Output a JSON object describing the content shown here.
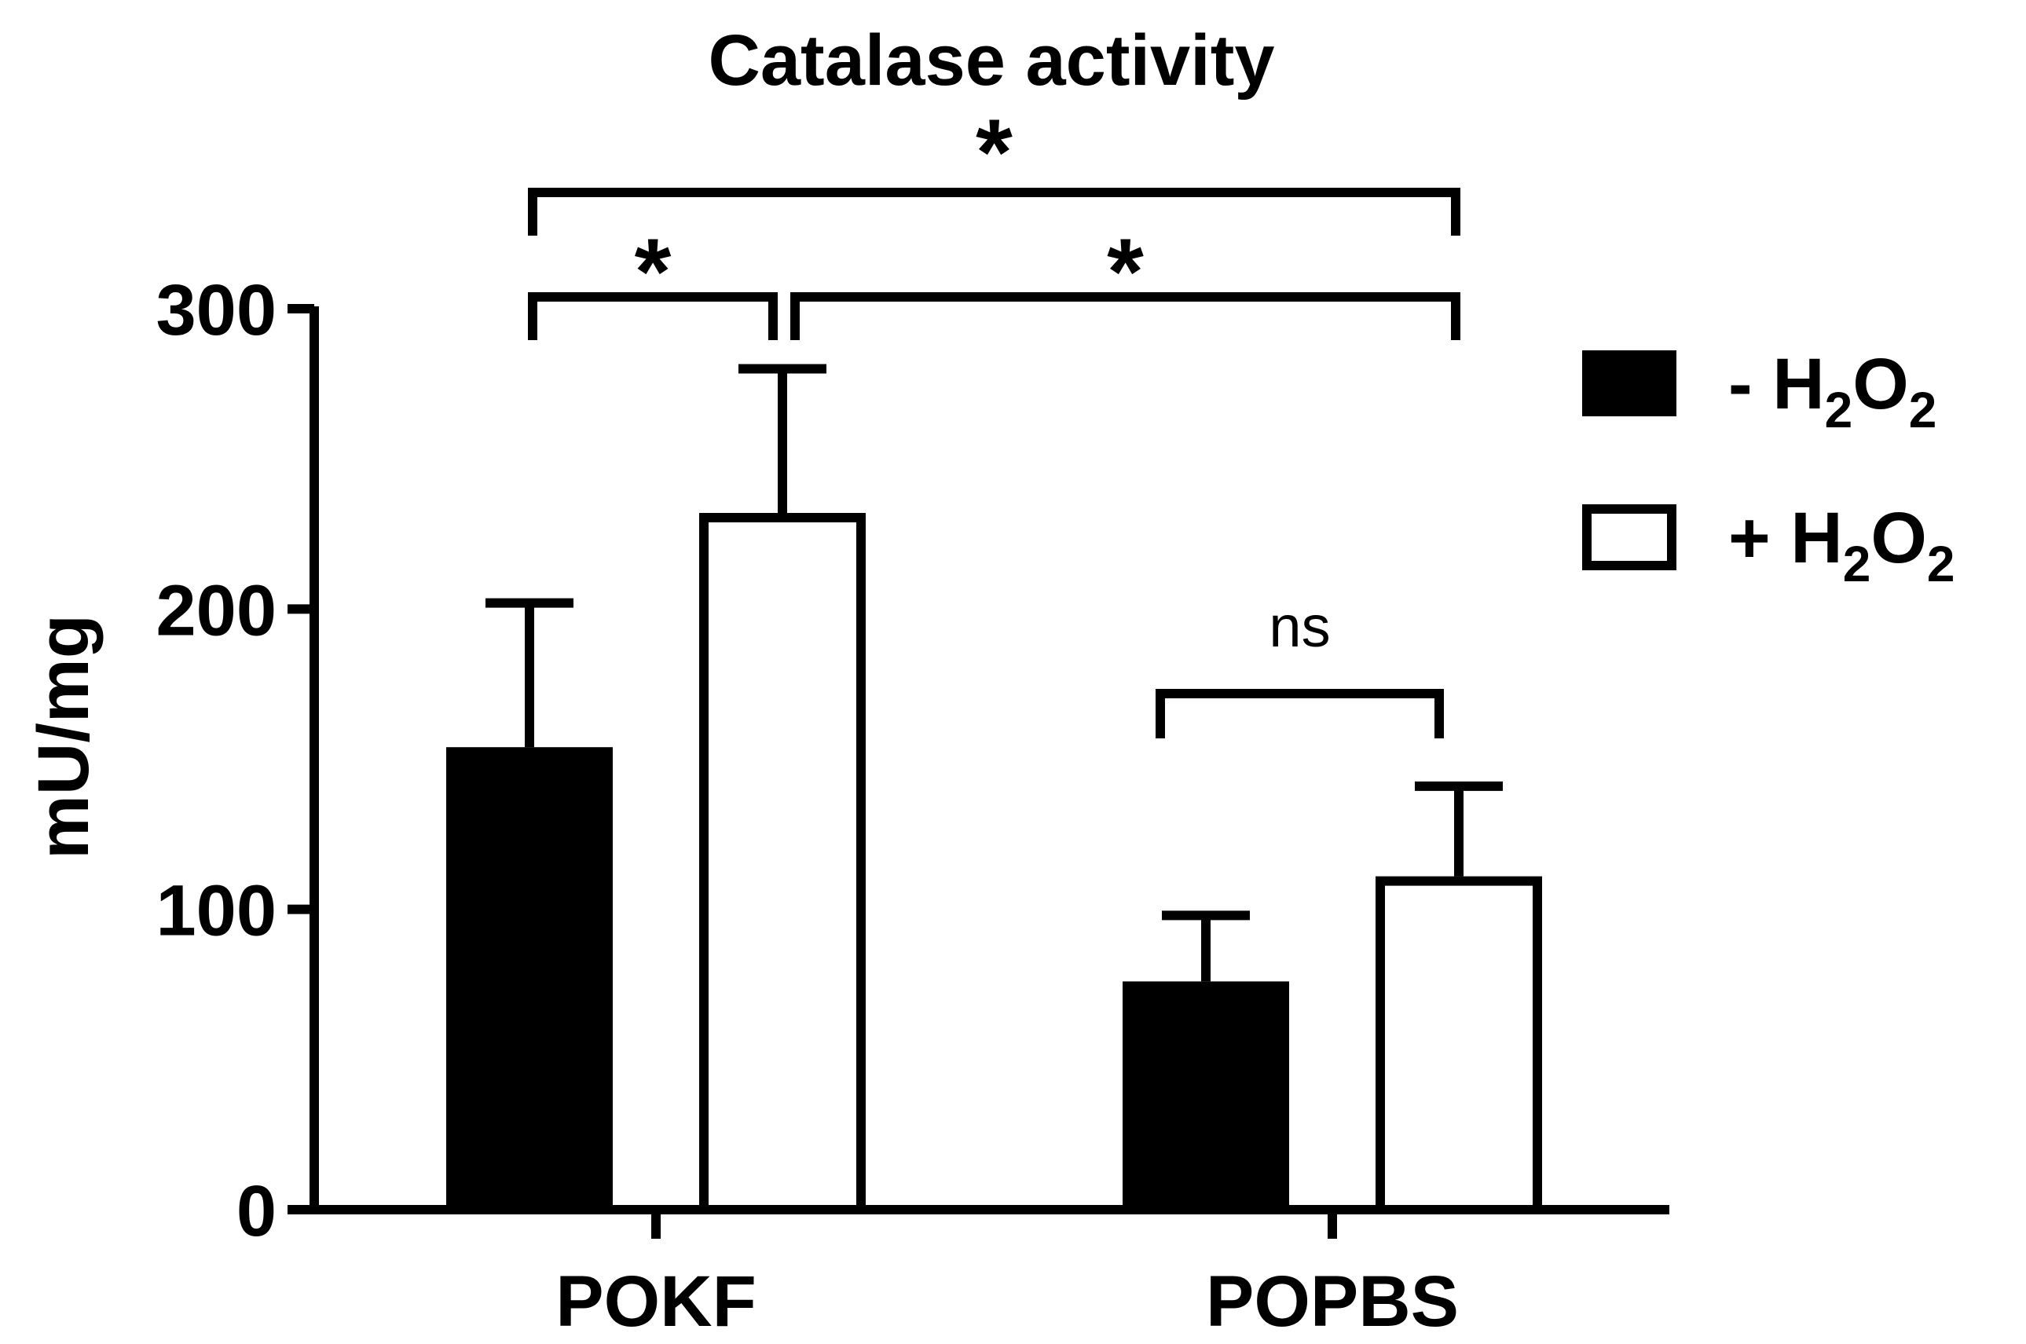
{
  "chart_data": {
    "type": "bar",
    "title": "Catalase activity",
    "xlabel": "",
    "ylabel": "mU/mg",
    "ylim": [
      0,
      300
    ],
    "yticks": [
      0,
      100,
      200,
      300
    ],
    "categories": [
      "POKF",
      "POPBS"
    ],
    "series": [
      {
        "name": "- H2O2",
        "legend_prefix": "- H",
        "fill": "#000000",
        "values": [
          154,
          76
        ],
        "errors": [
          48,
          22
        ]
      },
      {
        "name": "+ H2O2",
        "legend_prefix": "+ H",
        "fill": "#ffffff",
        "values": [
          232,
          111
        ],
        "errors": [
          48,
          30
        ]
      }
    ],
    "legend_subscript": "2",
    "legend_mid": "O",
    "legend_position": "right",
    "grid": false,
    "annotations": [
      {
        "text": "*",
        "groups": [
          "POKF:- H2O2",
          "POPBS:+ H2O2"
        ]
      },
      {
        "text": "*",
        "groups": [
          "POKF:- H2O2",
          "POKF:+ H2O2"
        ]
      },
      {
        "text": "*",
        "groups": [
          "POKF:+ H2O2",
          "POPBS:+ H2O2"
        ]
      },
      {
        "text": "ns",
        "groups": [
          "POPBS:- H2O2",
          "POPBS:+ H2O2"
        ]
      }
    ],
    "colors": {
      "axis": "#000000",
      "bar_dark": "#000000",
      "bar_light": "#ffffff"
    }
  }
}
